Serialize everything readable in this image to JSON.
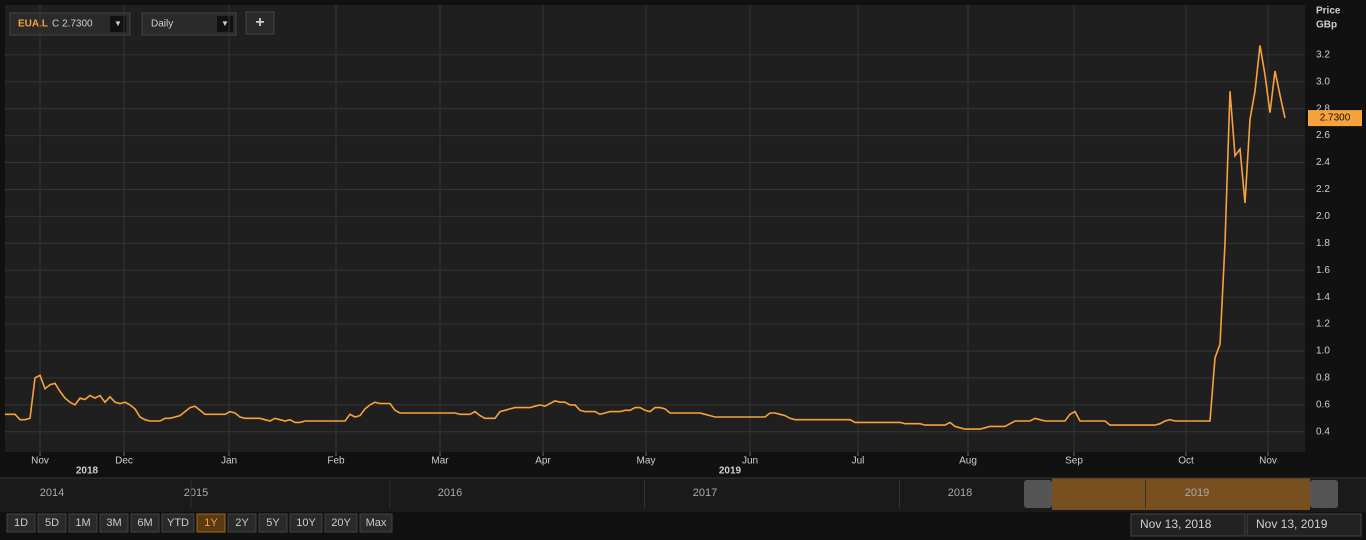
{
  "chart_data": {
    "type": "line",
    "symbol": "EUA.L",
    "close_label": "C 2.7300",
    "interval": "Daily",
    "y_axis_title": "Price",
    "y_axis_unit": "GBp",
    "last_value_label": "2.7300",
    "series": [
      {
        "name": "EUA.L",
        "color": "#f7a23c",
        "values": [
          0.53,
          0.53,
          0.53,
          0.49,
          0.49,
          0.5,
          0.8,
          0.82,
          0.72,
          0.75,
          0.76,
          0.7,
          0.65,
          0.62,
          0.6,
          0.65,
          0.64,
          0.67,
          0.65,
          0.67,
          0.62,
          0.66,
          0.62,
          0.61,
          0.62,
          0.6,
          0.57,
          0.51,
          0.49,
          0.48,
          0.48,
          0.48,
          0.5,
          0.5,
          0.51,
          0.52,
          0.55,
          0.58,
          0.59,
          0.56,
          0.53,
          0.53,
          0.53,
          0.53,
          0.53,
          0.55,
          0.54,
          0.51,
          0.5,
          0.5,
          0.5,
          0.5,
          0.49,
          0.48,
          0.5,
          0.49,
          0.48,
          0.49,
          0.47,
          0.47,
          0.48,
          0.48,
          0.48,
          0.48,
          0.48,
          0.48,
          0.48,
          0.48,
          0.48,
          0.53,
          0.51,
          0.52,
          0.57,
          0.6,
          0.62,
          0.61,
          0.61,
          0.61,
          0.56,
          0.54,
          0.54,
          0.54,
          0.54,
          0.54,
          0.54,
          0.54,
          0.54,
          0.54,
          0.54,
          0.54,
          0.54,
          0.53,
          0.53,
          0.53,
          0.55,
          0.52,
          0.5,
          0.5,
          0.5,
          0.55,
          0.56,
          0.57,
          0.58,
          0.58,
          0.58,
          0.58,
          0.59,
          0.6,
          0.59,
          0.61,
          0.63,
          0.62,
          0.62,
          0.6,
          0.6,
          0.56,
          0.55,
          0.55,
          0.55,
          0.53,
          0.54,
          0.55,
          0.55,
          0.55,
          0.56,
          0.56,
          0.58,
          0.58,
          0.56,
          0.55,
          0.58,
          0.58,
          0.57,
          0.54,
          0.54,
          0.54,
          0.54,
          0.54,
          0.54,
          0.54,
          0.53,
          0.52,
          0.51,
          0.51,
          0.51,
          0.51,
          0.51,
          0.51,
          0.51,
          0.51,
          0.51,
          0.51,
          0.51,
          0.54,
          0.54,
          0.53,
          0.52,
          0.5,
          0.49,
          0.49,
          0.49,
          0.49,
          0.49,
          0.49,
          0.49,
          0.49,
          0.49,
          0.49,
          0.49,
          0.49,
          0.47,
          0.47,
          0.47,
          0.47,
          0.47,
          0.47,
          0.47,
          0.47,
          0.47,
          0.47,
          0.46,
          0.46,
          0.46,
          0.46,
          0.45,
          0.45,
          0.45,
          0.45,
          0.45,
          0.47,
          0.44,
          0.43,
          0.42,
          0.42,
          0.42,
          0.42,
          0.43,
          0.44,
          0.44,
          0.44,
          0.44,
          0.46,
          0.48,
          0.48,
          0.48,
          0.48,
          0.5,
          0.49,
          0.48,
          0.48,
          0.48,
          0.48,
          0.48,
          0.53,
          0.55,
          0.48,
          0.48,
          0.48,
          0.48,
          0.48,
          0.48,
          0.45,
          0.45,
          0.45,
          0.45,
          0.45,
          0.45,
          0.45,
          0.45,
          0.45,
          0.45,
          0.46,
          0.48,
          0.49,
          0.48,
          0.48,
          0.48,
          0.48,
          0.48,
          0.48,
          0.48,
          0.48,
          0.95,
          1.05,
          1.8,
          2.93,
          2.45,
          2.5,
          2.1,
          2.72,
          2.93,
          3.27,
          3.05,
          2.77,
          3.08,
          2.9,
          2.73
        ]
      }
    ],
    "xlim": [
      0,
      260
    ],
    "xticks": [
      {
        "value": 7,
        "label": "Nov"
      },
      {
        "value": 23.8,
        "label": "Dec"
      },
      {
        "value": 44.8,
        "label": "Jan"
      },
      {
        "value": 66.2,
        "label": "Feb"
      },
      {
        "value": 87,
        "label": "Mar"
      },
      {
        "value": 107.6,
        "label": "Apr"
      },
      {
        "value": 128.2,
        "label": "May"
      },
      {
        "value": 149,
        "label": "Jun"
      },
      {
        "value": 170.6,
        "label": "Jul"
      },
      {
        "value": 192.6,
        "label": "Aug"
      },
      {
        "value": 213.8,
        "label": "Sep"
      },
      {
        "value": 236.2,
        "label": "Oct"
      },
      {
        "value": 252.6,
        "label": "Nov"
      }
    ],
    "year_ticks": [
      {
        "value": 16.4,
        "label": "2018"
      },
      {
        "value": 145,
        "label": "2019"
      }
    ],
    "ylim": [
      0.25,
      3.57
    ],
    "yticks": [
      0.4,
      0.6,
      0.8,
      {
        "value": 1,
        "label": "1.0"
      },
      1.2,
      1.4,
      1.6,
      1.8,
      {
        "value": 2,
        "label": "2.0"
      },
      2.2,
      2.4,
      2.6,
      2.8,
      {
        "value": 3,
        "label": "3.0"
      },
      3.2
    ],
    "grid": true
  },
  "navigator": {
    "years": [
      "2014",
      "2015",
      "2016",
      "2017",
      "2018",
      "2019"
    ]
  },
  "ranges": [
    {
      "label": "1D"
    },
    {
      "label": "5D"
    },
    {
      "label": "1M"
    },
    {
      "label": "3M"
    },
    {
      "label": "6M"
    },
    {
      "label": "YTD"
    },
    {
      "label": "1Y",
      "active": true
    },
    {
      "label": "2Y"
    },
    {
      "label": "5Y"
    },
    {
      "label": "10Y"
    },
    {
      "label": "20Y"
    },
    {
      "label": "Max"
    }
  ],
  "date_from": "Nov 13, 2018",
  "date_to": "Nov 13, 2019"
}
